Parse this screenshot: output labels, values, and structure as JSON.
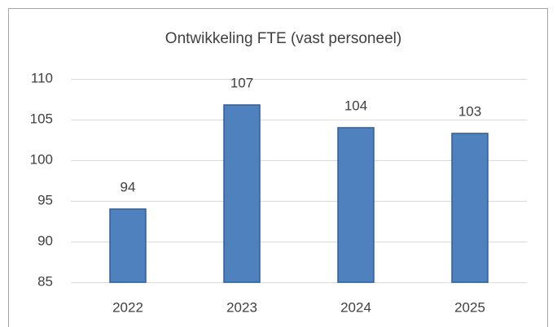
{
  "chart_data": {
    "type": "bar",
    "title": "Ontwikkeling FTE (vast personeel)",
    "categories": [
      "2022",
      "2023",
      "2024",
      "2025"
    ],
    "values": [
      94,
      106.8,
      104,
      103.3
    ],
    "value_labels": [
      "94",
      "107",
      "104",
      "103"
    ],
    "color": "#4e81bd",
    "ylim": [
      85,
      110
    ],
    "yticks": [
      85,
      90,
      95,
      100,
      105,
      110
    ],
    "grid": true
  }
}
